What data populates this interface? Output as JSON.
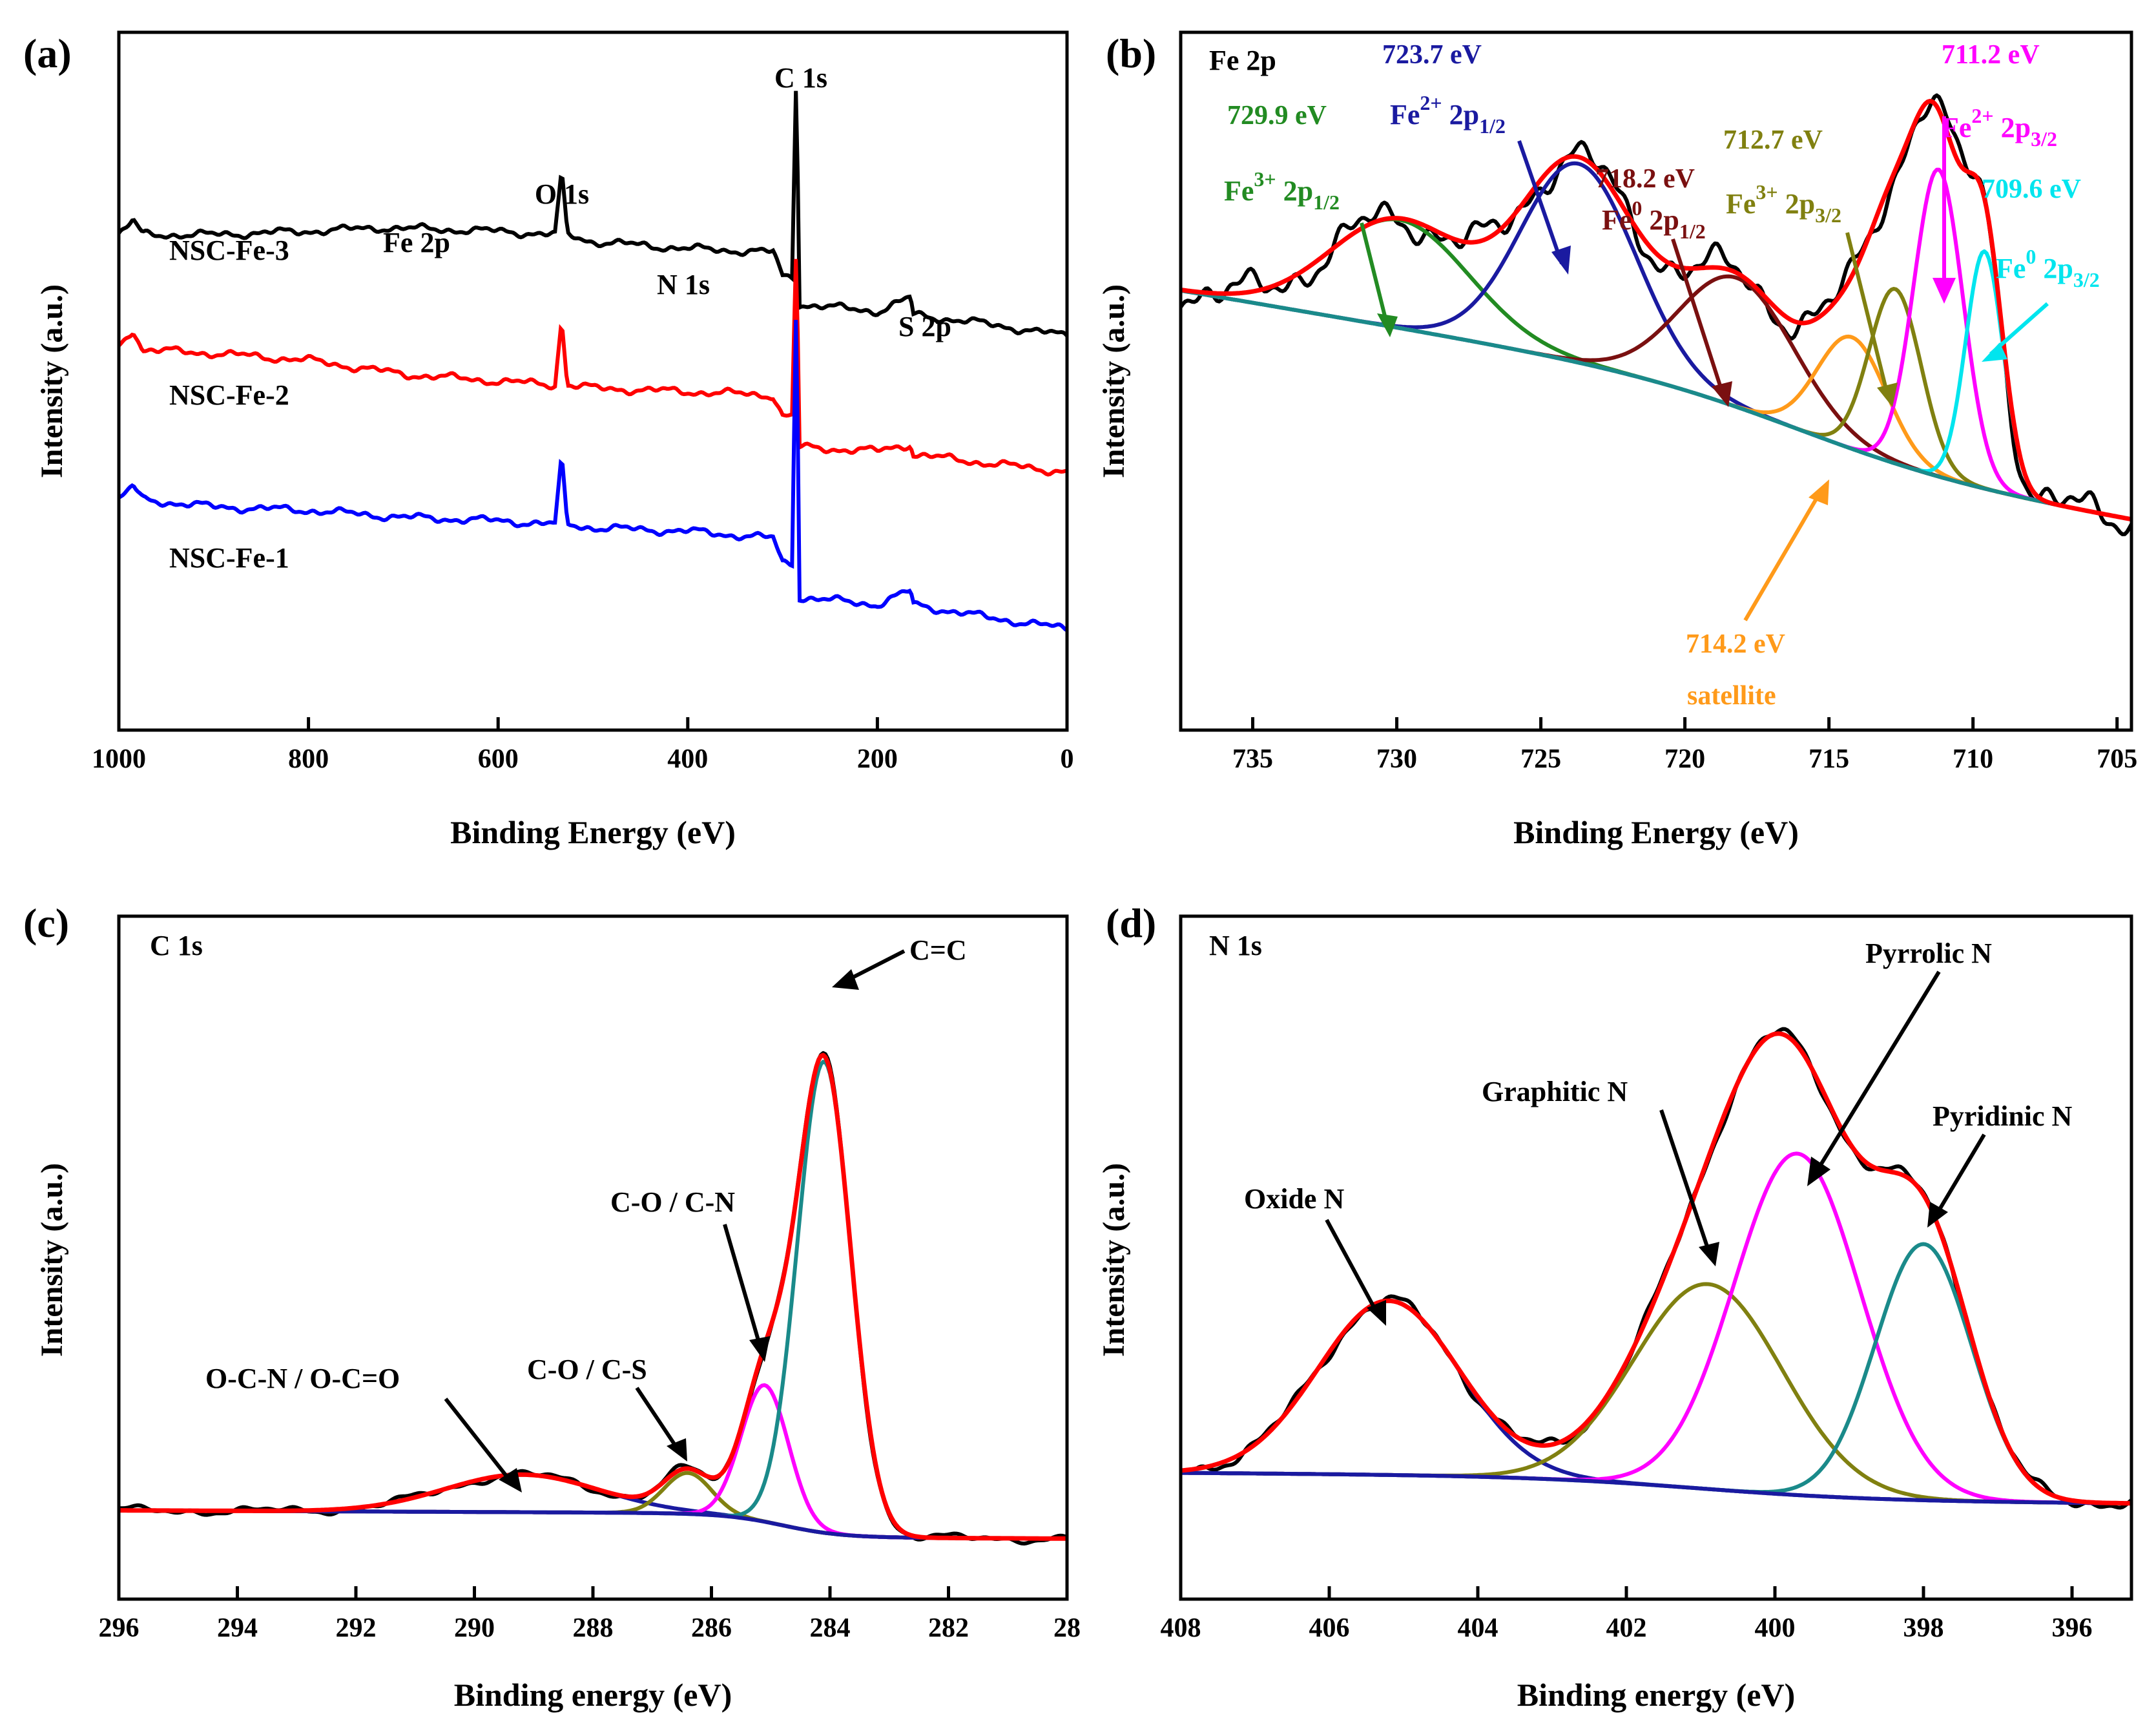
{
  "colors": {
    "black": "#000000",
    "red": "#ff0000",
    "blue": "#0000ff",
    "navy": "#1a1aa0",
    "green": "#228b22",
    "maroon": "#7a1010",
    "olive": "#808010",
    "orange": "#ff9a1a",
    "magenta": "#ff00ff",
    "cyan": "#00e5ee",
    "teal": "#1a8a8a"
  },
  "chart_data": [
    {
      "panel": "(a)",
      "type": "line",
      "title": "",
      "xlabel": "Binding Energy (eV)",
      "ylabel": "Intensity (a.u.)",
      "xlim": [
        1000,
        0
      ],
      "xticks": [
        "1000",
        "800",
        "600",
        "400",
        "200",
        "0"
      ],
      "ylim": [
        0,
        10
      ],
      "series": [
        {
          "name": "NSC-Fe-3",
          "color": "#000000",
          "x": [
            1000,
            985,
            975,
            900,
            800,
            720,
            600,
            540,
            533,
            527,
            500,
            400,
            310,
            300,
            290,
            285,
            283,
            280,
            200,
            165,
            162,
            100,
            0
          ],
          "y": [
            7.1,
            7.3,
            7.1,
            7.1,
            7.15,
            7.2,
            7.15,
            7.1,
            8.0,
            7.1,
            7.0,
            6.9,
            6.85,
            6.5,
            6.5,
            9.9,
            6.1,
            6.1,
            6.0,
            6.2,
            5.95,
            5.85,
            5.65
          ]
        },
        {
          "name": "NSC-Fe-2",
          "color": "#ff0000",
          "x": [
            1000,
            985,
            975,
            900,
            800,
            700,
            600,
            540,
            533,
            527,
            500,
            400,
            310,
            300,
            290,
            285,
            283,
            280,
            200,
            165,
            162,
            100,
            0
          ],
          "y": [
            5.5,
            5.75,
            5.45,
            5.4,
            5.3,
            5.1,
            5.0,
            4.95,
            5.9,
            4.95,
            4.9,
            4.85,
            4.8,
            4.5,
            4.5,
            7.3,
            4.05,
            4.05,
            4.0,
            4.1,
            3.95,
            3.85,
            3.7
          ]
        },
        {
          "name": "NSC-Fe-1",
          "color": "#0000ff",
          "x": [
            1000,
            985,
            975,
            900,
            800,
            700,
            600,
            540,
            533,
            527,
            500,
            400,
            310,
            300,
            290,
            285,
            283,
            280,
            200,
            165,
            162,
            100,
            0
          ],
          "y": [
            3.3,
            3.5,
            3.3,
            3.2,
            3.15,
            3.05,
            3.0,
            2.95,
            3.9,
            2.95,
            2.9,
            2.85,
            2.75,
            2.4,
            2.4,
            6.8,
            1.9,
            1.9,
            1.8,
            2.0,
            1.8,
            1.65,
            1.45
          ]
        }
      ],
      "annotations": [
        "C 1s",
        "O 1s",
        "Fe 2p",
        "N 1s",
        "S 2p"
      ]
    },
    {
      "panel": "(b)",
      "type": "line",
      "title": "Fe 2p",
      "xlabel": "Binding Energy (eV)",
      "ylabel": "Intensity (a.u.)",
      "xlim": [
        737.5,
        704.5
      ],
      "xticks": [
        "735",
        "730",
        "725",
        "720",
        "715",
        "710",
        "705"
      ],
      "ylim": [
        0,
        10
      ],
      "peaks": [
        {
          "label": "Fe3+ 2p1/2",
          "center": 729.9,
          "color": "#228b22",
          "amp": 1.55,
          "width": 2.4
        },
        {
          "label": "Fe2+ 2p1/2",
          "center": 723.7,
          "color": "#1a1aa0",
          "amp": 2.85,
          "width": 2.0
        },
        {
          "label": "Fe0 2p1/2",
          "center": 718.2,
          "color": "#7a1010",
          "amp": 1.85,
          "width": 2.0
        },
        {
          "label": "satellite",
          "center": 714.2,
          "color": "#ff9a1a",
          "amp": 1.6,
          "width": 1.2
        },
        {
          "label": "Fe3+ 2p3/2",
          "center": 712.7,
          "color": "#808010",
          "amp": 2.5,
          "width": 0.9
        },
        {
          "label": "Fe2+ 2p3/2",
          "center": 711.2,
          "color": "#ff00ff",
          "amp": 4.4,
          "width": 0.85
        },
        {
          "label": "Fe0 2p3/2",
          "center": 709.6,
          "color": "#00e5ee",
          "amp": 3.4,
          "width": 0.65
        }
      ],
      "annotations": [
        "729.9 eV",
        "723.7 eV",
        "718.2 eV",
        "712.7 eV",
        "711.2 eV",
        "709.6 eV",
        "714.2 eV",
        "satellite"
      ]
    },
    {
      "panel": "(c)",
      "type": "line",
      "title": "C 1s",
      "xlabel": "Binding energy (eV)",
      "ylabel": "Intensity (a.u.)",
      "xlim": [
        296,
        280
      ],
      "xticks": [
        "296",
        "294",
        "292",
        "290",
        "288",
        "286",
        "284",
        "282",
        "28"
      ],
      "ylim": [
        0,
        10
      ],
      "peaks": [
        {
          "label": "O-C-N / O-C=O",
          "center": 289.2,
          "color": "#1a1aa0",
          "amp": 0.55,
          "width": 1.3
        },
        {
          "label": "C-O / C-S",
          "center": 286.4,
          "color": "#808010",
          "amp": 0.6,
          "width": 0.4
        },
        {
          "label": "C-O / C-N",
          "center": 285.1,
          "color": "#ff00ff",
          "amp": 2.0,
          "width": 0.4
        },
        {
          "label": "C=C",
          "center": 284.1,
          "color": "#1a8a8a",
          "amp": 6.9,
          "width": 0.45
        }
      ],
      "annotations": [
        "C=C",
        "C-O / C-N",
        "O-C-N / O-C=O",
        "C-O / C-S"
      ]
    },
    {
      "panel": "(d)",
      "type": "line",
      "title": "N 1s",
      "xlabel": "Binding energy (eV)",
      "ylabel": "Intensity (a.u.)",
      "xlim": [
        408,
        395.2
      ],
      "xticks": [
        "408",
        "406",
        "404",
        "402",
        "400",
        "398",
        "396"
      ],
      "ylim": [
        0,
        10
      ],
      "peaks": [
        {
          "label": "Oxide N",
          "center": 405.2,
          "color": "#1a1aa0",
          "amp": 2.55,
          "width": 0.95
        },
        {
          "label": "Graphitic N",
          "center": 400.9,
          "color": "#808010",
          "amp": 3.0,
          "width": 1.0
        },
        {
          "label": "Pyrrolic N",
          "center": 399.7,
          "color": "#ff00ff",
          "amp": 5.0,
          "width": 0.85
        },
        {
          "label": "Pyridinic N",
          "center": 398.0,
          "color": "#1a8a8a",
          "amp": 3.75,
          "width": 0.65
        }
      ],
      "annotations": [
        "Oxide N",
        "Graphitic N",
        "Pyrrolic N",
        "Pyridinic N"
      ]
    }
  ]
}
